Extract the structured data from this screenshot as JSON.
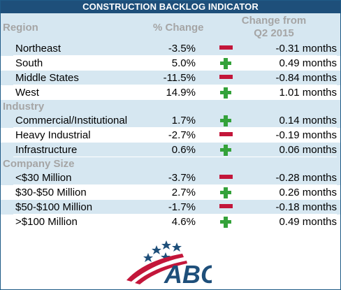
{
  "title": "CONSTRUCTION BACKLOG INDICATOR",
  "headers": {
    "region": "Region",
    "pct_change": "% Change",
    "change_from_line1": "Change from",
    "change_from_line2": "Q2 2015"
  },
  "colors": {
    "title_bar": "#1e4f7a",
    "shade": "#d6e7f1",
    "header_text": "#a5a5a5",
    "plus": "#34a23a",
    "minus": "#c3163a"
  },
  "sections": [
    {
      "label": "",
      "rows": [
        {
          "label": "Northeast",
          "pct": "-3.5%",
          "indicator": "minus-icon",
          "months": "-0.31 months"
        },
        {
          "label": "South",
          "pct": "5.0%",
          "indicator": "plus-icon",
          "months": "0.49 months"
        },
        {
          "label": "Middle States",
          "pct": "-11.5%",
          "indicator": "minus-icon",
          "months": "-0.84 months"
        },
        {
          "label": "West",
          "pct": "14.9%",
          "indicator": "plus-icon",
          "months": "1.01 months"
        }
      ]
    },
    {
      "label": "Industry",
      "rows": [
        {
          "label": "Commercial/Institutional",
          "pct": "1.7%",
          "indicator": "plus-icon",
          "months": "0.14 months"
        },
        {
          "label": "Heavy Industrial",
          "pct": "-2.7%",
          "indicator": "minus-icon",
          "months": "-0.19 months"
        },
        {
          "label": "Infrastructure",
          "pct": "0.6%",
          "indicator": "plus-icon",
          "months": "0.06 months"
        }
      ]
    },
    {
      "label": "Company Size",
      "rows": [
        {
          "label": "<$30 Million",
          "pct": "-3.7%",
          "indicator": "minus-icon",
          "months": "-0.28 months"
        },
        {
          "label": "$30-$50 Million",
          "pct": "2.7%",
          "indicator": "plus-icon",
          "months": "0.26 months"
        },
        {
          "label": "$50-$100 Million",
          "pct": "-1.7%",
          "indicator": "minus-icon",
          "months": "-0.18 months"
        },
        {
          "label": ">$100 Million",
          "pct": "4.6%",
          "indicator": "plus-icon",
          "months": "0.49 months"
        }
      ]
    }
  ],
  "logo": {
    "text": "ABC",
    "icon": "abc-flag-logo-icon"
  }
}
